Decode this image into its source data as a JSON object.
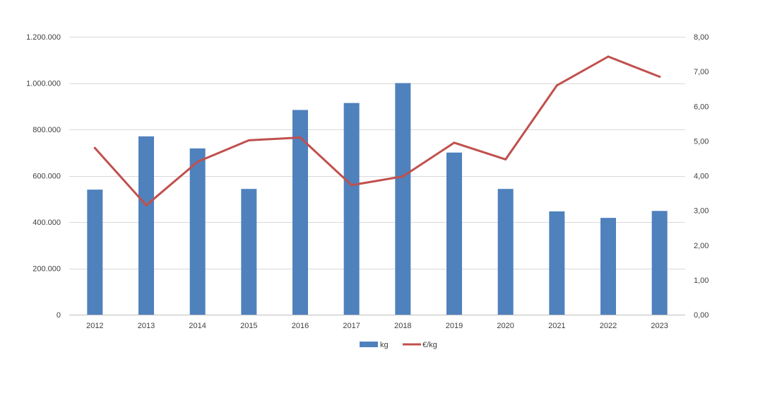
{
  "chart_data": {
    "type": "bar",
    "categories": [
      "2012",
      "2013",
      "2014",
      "2015",
      "2016",
      "2017",
      "2018",
      "2019",
      "2020",
      "2021",
      "2022",
      "2023"
    ],
    "series": [
      {
        "name": "kg",
        "type": "bar",
        "axis": "left",
        "color": "#4F81BD",
        "values": [
          540000,
          770000,
          718000,
          543000,
          884000,
          914000,
          1000000,
          700000,
          543000,
          446000,
          418000,
          448000
        ]
      },
      {
        "name": "€/kg",
        "type": "line",
        "axis": "right",
        "color": "#C0504D",
        "values": [
          4.8,
          3.15,
          4.4,
          5.02,
          5.1,
          3.73,
          3.98,
          4.95,
          4.47,
          6.6,
          7.43,
          6.85
        ]
      }
    ],
    "y_left": {
      "ylim": [
        0,
        1200000
      ],
      "ticks": [
        0,
        200000,
        400000,
        600000,
        800000,
        1000000,
        1200000
      ],
      "tick_labels": [
        "0",
        "200.000",
        "400.000",
        "600.000",
        "800.000",
        "1.000.000",
        "1.200.000"
      ]
    },
    "y_right": {
      "ylim": [
        0,
        8
      ],
      "ticks": [
        0,
        1,
        2,
        3,
        4,
        5,
        6,
        7,
        8
      ],
      "tick_labels": [
        "0,00",
        "1,00",
        "2,00",
        "3,00",
        "4,00",
        "5,00",
        "6,00",
        "7,00",
        "8,00"
      ]
    },
    "grid": true,
    "legend": "bottom",
    "gridline_color": "#D9D9D9",
    "axis_color": "#BFBFBF"
  }
}
